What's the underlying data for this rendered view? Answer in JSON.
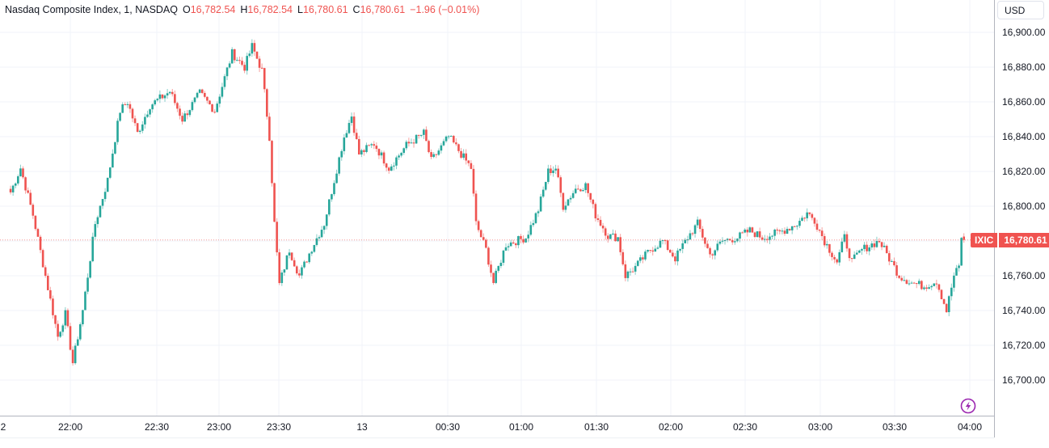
{
  "header": {
    "symbol_title": "Nasdaq Composite Index, 1, NASDAQ",
    "open_label": "O",
    "open_value": "16,782.54",
    "high_label": "H",
    "high_value": "16,782.54",
    "low_label": "L",
    "low_value": "16,780.61",
    "close_label": "C",
    "close_value": "16,780.61",
    "change": "−1.96 (−0.01%)"
  },
  "price_scale": {
    "currency_button": "USD",
    "labels": [
      "16,900.00",
      "16,880.00",
      "16,860.00",
      "16,840.00",
      "16,820.00",
      "16,800.00",
      "16,760.00",
      "16,740.00",
      "16,720.00",
      "16,700.00"
    ],
    "last_price_symbol": "IXIC",
    "last_price": "16,780.61"
  },
  "time_scale": {
    "labels": [
      "2",
      "22:00",
      "22:30",
      "23:00",
      "23:30",
      "13",
      "00:30",
      "01:00",
      "01:30",
      "02:00",
      "02:30",
      "03:00",
      "03:30",
      "04:00"
    ]
  },
  "colors": {
    "up": "#26a69a",
    "down": "#ef5350",
    "grid": "#f0f3fa",
    "last_price": "#f05350",
    "lightning": "#9c27b0"
  },
  "chart_data": {
    "type": "candlestick",
    "title": "Nasdaq Composite Index, 1, NASDAQ",
    "interval": "1 minute",
    "xlabel": "",
    "ylabel": "USD",
    "ylim": [
      16685,
      16910
    ],
    "y_ticks": [
      16700,
      16720,
      16740,
      16760,
      16780,
      16800,
      16820,
      16840,
      16860,
      16880,
      16900
    ],
    "x_ticks": [
      "22:00",
      "22:30",
      "23:00",
      "23:30",
      "13",
      "00:30",
      "01:00",
      "01:30",
      "02:00",
      "02:30",
      "03:00",
      "03:30",
      "04:00"
    ],
    "grid": true,
    "last": {
      "open": 16782.54,
      "high": 16782.54,
      "low": 16780.61,
      "close": 16780.61,
      "change": -1.96,
      "change_pct": -0.01
    },
    "approx_close_path": [
      {
        "time": "21:36",
        "close": 16808
      },
      {
        "time": "21:40",
        "close": 16822
      },
      {
        "time": "21:45",
        "close": 16795
      },
      {
        "time": "21:50",
        "close": 16760
      },
      {
        "time": "21:55",
        "close": 16725
      },
      {
        "time": "21:58",
        "close": 16738
      },
      {
        "time": "22:01",
        "close": 16710
      },
      {
        "time": "22:05",
        "close": 16740
      },
      {
        "time": "22:10",
        "close": 16790
      },
      {
        "time": "22:15",
        "close": 16815
      },
      {
        "time": "22:20",
        "close": 16855
      },
      {
        "time": "22:23",
        "close": 16860
      },
      {
        "time": "22:27",
        "close": 16842
      },
      {
        "time": "22:32",
        "close": 16858
      },
      {
        "time": "22:40",
        "close": 16866
      },
      {
        "time": "22:45",
        "close": 16850
      },
      {
        "time": "22:52",
        "close": 16865
      },
      {
        "time": "22:58",
        "close": 16855
      },
      {
        "time": "23:05",
        "close": 16888
      },
      {
        "time": "23:10",
        "close": 16880
      },
      {
        "time": "23:13",
        "close": 16892
      },
      {
        "time": "23:17",
        "close": 16878
      },
      {
        "time": "23:20",
        "close": 16840
      },
      {
        "time": "23:22",
        "close": 16790
      },
      {
        "time": "23:24",
        "close": 16755
      },
      {
        "time": "23:28",
        "close": 16775
      },
      {
        "time": "23:32",
        "close": 16760
      },
      {
        "time": "23:37",
        "close": 16776
      },
      {
        "time": "23:42",
        "close": 16790
      },
      {
        "time": "23:46",
        "close": 16815
      },
      {
        "time": "23:50",
        "close": 16840
      },
      {
        "time": "23:53",
        "close": 16852
      },
      {
        "time": "23:56",
        "close": 16830
      },
      {
        "time": "00:02",
        "close": 16836
      },
      {
        "time": "00:08",
        "close": 16822
      },
      {
        "time": "00:15",
        "close": 16835
      },
      {
        "time": "00:22",
        "close": 16842
      },
      {
        "time": "00:25",
        "close": 16826
      },
      {
        "time": "00:32",
        "close": 16840
      },
      {
        "time": "00:37",
        "close": 16830
      },
      {
        "time": "00:41",
        "close": 16822
      },
      {
        "time": "00:43",
        "close": 16790
      },
      {
        "time": "00:47",
        "close": 16775
      },
      {
        "time": "00:50",
        "close": 16756
      },
      {
        "time": "00:55",
        "close": 16778
      },
      {
        "time": "01:03",
        "close": 16782
      },
      {
        "time": "01:08",
        "close": 16798
      },
      {
        "time": "01:12",
        "close": 16820
      },
      {
        "time": "01:15",
        "close": 16822
      },
      {
        "time": "01:18",
        "close": 16800
      },
      {
        "time": "01:23",
        "close": 16810
      },
      {
        "time": "01:27",
        "close": 16812
      },
      {
        "time": "01:31",
        "close": 16795
      },
      {
        "time": "01:36",
        "close": 16783
      },
      {
        "time": "01:40",
        "close": 16782
      },
      {
        "time": "01:43",
        "close": 16760
      },
      {
        "time": "01:47",
        "close": 16765
      },
      {
        "time": "01:53",
        "close": 16775
      },
      {
        "time": "01:58",
        "close": 16780
      },
      {
        "time": "02:03",
        "close": 16770
      },
      {
        "time": "02:08",
        "close": 16782
      },
      {
        "time": "02:12",
        "close": 16790
      },
      {
        "time": "02:17",
        "close": 16772
      },
      {
        "time": "02:22",
        "close": 16780
      },
      {
        "time": "02:28",
        "close": 16782
      },
      {
        "time": "02:33",
        "close": 16786
      },
      {
        "time": "02:38",
        "close": 16782
      },
      {
        "time": "02:45",
        "close": 16785
      },
      {
        "time": "02:52",
        "close": 16790
      },
      {
        "time": "02:56",
        "close": 16796
      },
      {
        "time": "02:59",
        "close": 16792
      },
      {
        "time": "03:03",
        "close": 16780
      },
      {
        "time": "03:08",
        "close": 16768
      },
      {
        "time": "03:11",
        "close": 16782
      },
      {
        "time": "03:14",
        "close": 16768
      },
      {
        "time": "03:18",
        "close": 16775
      },
      {
        "time": "03:22",
        "close": 16778
      },
      {
        "time": "03:25",
        "close": 16780
      },
      {
        "time": "03:29",
        "close": 16770
      },
      {
        "time": "03:33",
        "close": 16760
      },
      {
        "time": "03:38",
        "close": 16756
      },
      {
        "time": "03:43",
        "close": 16754
      },
      {
        "time": "03:48",
        "close": 16757
      },
      {
        "time": "03:52",
        "close": 16740
      },
      {
        "time": "03:55",
        "close": 16760
      },
      {
        "time": "03:57",
        "close": 16765
      },
      {
        "time": "03:58",
        "close": 16782.5
      },
      {
        "time": "03:59",
        "close": 16780.61
      }
    ]
  }
}
